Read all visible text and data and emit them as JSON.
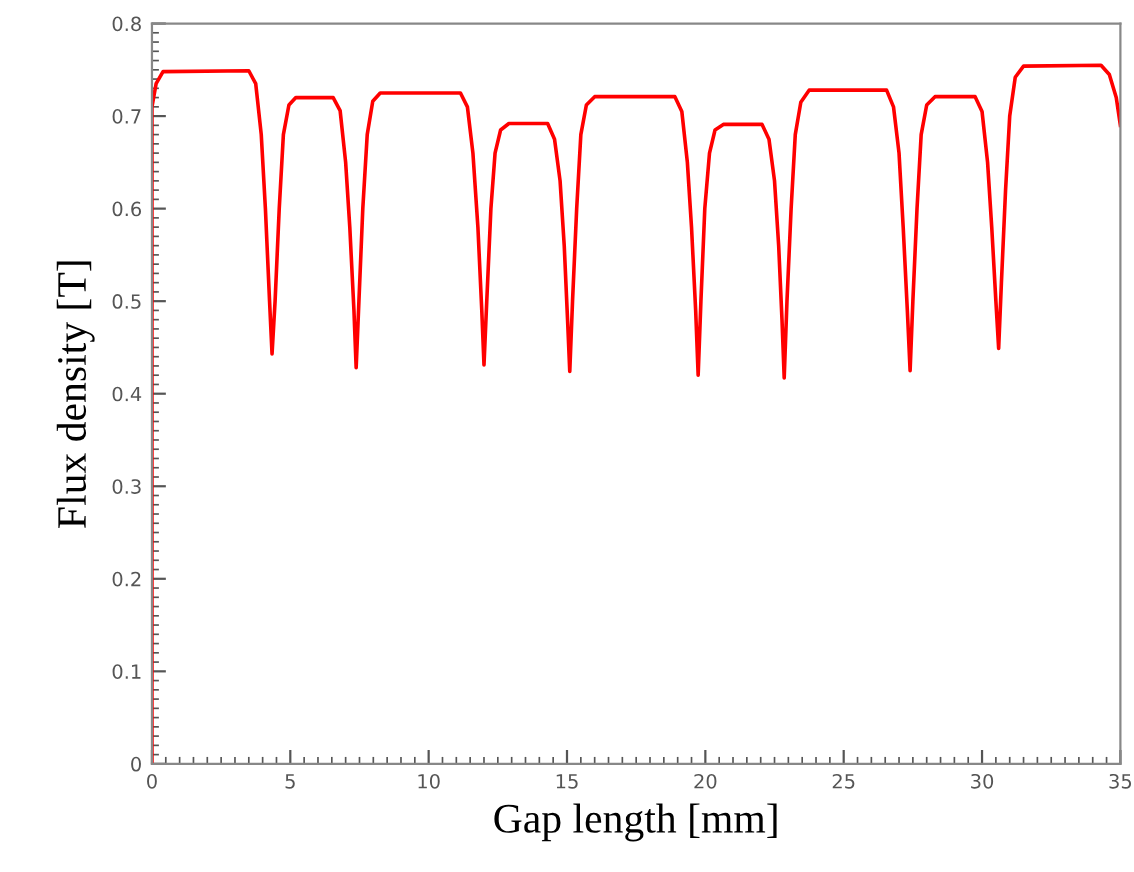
{
  "chart_data": {
    "type": "line",
    "xlabel": "Gap length [mm]",
    "ylabel": "Flux density [T]",
    "xlim": [
      0,
      35
    ],
    "ylim": [
      0,
      0.8
    ],
    "xticks": [
      0,
      5,
      10,
      15,
      20,
      25,
      30,
      35
    ],
    "yticks": [
      0,
      0.1,
      0.2,
      0.3,
      0.4,
      0.5,
      0.6,
      0.7,
      0.8
    ],
    "grid": false,
    "marker": "none",
    "line_style": "solid",
    "series": [
      {
        "color": "#ff0000",
        "x": [
          0,
          0,
          0.15,
          0.4,
          3.5,
          3.75,
          3.95,
          4.1,
          4.25,
          4.34,
          4.45,
          4.6,
          4.75,
          4.95,
          5.2,
          6.55,
          6.8,
          7.0,
          7.15,
          7.3,
          7.38,
          7.48,
          7.62,
          7.78,
          7.98,
          8.25,
          11.15,
          11.4,
          11.6,
          11.78,
          11.92,
          12.0,
          12.1,
          12.25,
          12.4,
          12.6,
          12.9,
          14.3,
          14.55,
          14.75,
          14.9,
          15.02,
          15.1,
          15.2,
          15.35,
          15.5,
          15.7,
          16.0,
          18.9,
          19.15,
          19.35,
          19.5,
          19.65,
          19.74,
          19.84,
          19.98,
          20.15,
          20.35,
          20.65,
          22.05,
          22.3,
          22.5,
          22.65,
          22.77,
          22.85,
          22.95,
          23.1,
          23.25,
          23.45,
          23.75,
          26.55,
          26.8,
          27.0,
          27.15,
          27.3,
          27.4,
          27.5,
          27.65,
          27.8,
          28.0,
          28.3,
          29.75,
          30.0,
          30.2,
          30.35,
          30.5,
          30.6,
          30.7,
          30.85,
          31.0,
          31.2,
          31.5,
          34.3,
          34.6,
          34.85,
          35
        ],
        "values": [
          0,
          0.71,
          0.735,
          0.748,
          0.749,
          0.735,
          0.68,
          0.6,
          0.5,
          0.443,
          0.5,
          0.6,
          0.68,
          0.712,
          0.72,
          0.72,
          0.706,
          0.65,
          0.58,
          0.49,
          0.428,
          0.5,
          0.6,
          0.68,
          0.716,
          0.725,
          0.725,
          0.71,
          0.66,
          0.58,
          0.49,
          0.431,
          0.5,
          0.6,
          0.66,
          0.685,
          0.692,
          0.692,
          0.675,
          0.63,
          0.56,
          0.48,
          0.424,
          0.5,
          0.6,
          0.68,
          0.712,
          0.721,
          0.721,
          0.705,
          0.65,
          0.58,
          0.49,
          0.42,
          0.5,
          0.6,
          0.66,
          0.685,
          0.691,
          0.691,
          0.675,
          0.63,
          0.56,
          0.48,
          0.417,
          0.5,
          0.6,
          0.68,
          0.715,
          0.728,
          0.728,
          0.71,
          0.66,
          0.58,
          0.49,
          0.425,
          0.5,
          0.6,
          0.68,
          0.712,
          0.721,
          0.721,
          0.705,
          0.65,
          0.58,
          0.5,
          0.449,
          0.52,
          0.62,
          0.7,
          0.742,
          0.754,
          0.755,
          0.745,
          0.72,
          0.69
        ]
      }
    ]
  }
}
